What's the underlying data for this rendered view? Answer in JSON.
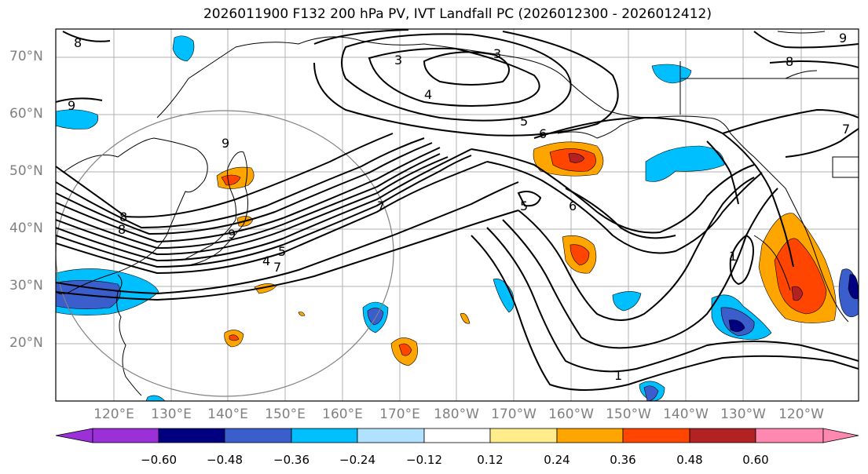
{
  "title": "2026011900 F132 200 hPa PV, IVT Landfall PC (2026012300 - 2026012412)",
  "lat_labels": [
    "70°N",
    "60°N",
    "50°N",
    "40°N",
    "30°N",
    "20°N"
  ],
  "lon_labels": [
    "120°E",
    "130°E",
    "140°E",
    "150°E",
    "160°E",
    "170°E",
    "180°W",
    "170°W",
    "160°W",
    "150°W",
    "140°W",
    "130°W",
    "120°W"
  ],
  "colorbar": {
    "ticks": [
      "−0.60",
      "−0.48",
      "−0.36",
      "−0.24",
      "−0.12",
      "0.12",
      "0.24",
      "0.36",
      "0.48",
      "0.60"
    ],
    "colors": [
      "#9b30d9",
      "#000080",
      "#3a5fcd",
      "#00bfff",
      "#b0e2ff",
      "#ffffff",
      "#ffec8b",
      "#ffa500",
      "#ff4500",
      "#b22222",
      "#ff88b0"
    ]
  },
  "contour_labels": [
    "8",
    "9",
    "3",
    "3",
    "4",
    "5",
    "6",
    "7",
    "5",
    "6",
    "1",
    "1",
    "8",
    "8",
    "9",
    "9",
    "4",
    "5",
    "7",
    "7",
    "8",
    "9"
  ]
}
